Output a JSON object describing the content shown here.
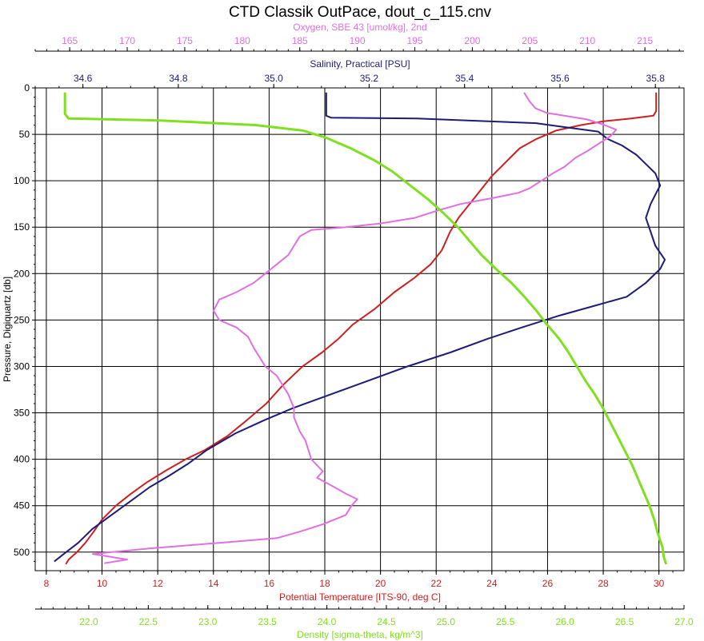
{
  "chart_data": {
    "type": "line",
    "title": "CTD Classik OutPace, dout_c_115.cnv",
    "y_axis": {
      "label": "Pressure, Digiquartz [db]",
      "range": [
        0,
        520
      ],
      "reversed": true,
      "ticks": [
        0,
        50,
        100,
        150,
        200,
        250,
        300,
        350,
        400,
        450,
        500
      ],
      "tick_labels": [
        "0",
        "50",
        "100",
        "150",
        "200",
        "250",
        "300",
        "350",
        "400",
        "450",
        "500"
      ]
    },
    "axes": {
      "oxygen": {
        "label": "Oxygen, SBE 43 [umol/kg], 2nd",
        "range": [
          162.0,
          218.4
        ],
        "ticks": [
          165,
          170,
          175,
          180,
          185,
          190,
          195,
          200,
          205,
          210,
          215
        ],
        "tick_labels": [
          "165",
          "170",
          "175",
          "180",
          "185",
          "190",
          "195",
          "200",
          "205",
          "210",
          "215"
        ],
        "color": "#e070e0",
        "position": "top"
      },
      "salinity": {
        "label": "Salinity, Practical [PSU]",
        "range": [
          34.5,
          35.86
        ],
        "ticks": [
          34.6,
          34.8,
          35.0,
          35.2,
          35.4,
          35.6,
          35.8
        ],
        "tick_labels": [
          "34.6",
          "34.8",
          "35.0",
          "35.2",
          "35.4",
          "35.6",
          "35.8"
        ],
        "color": "#1c1c78",
        "position": "top"
      },
      "temperature": {
        "label": "Potential Temperature [ITS-90, deg C]",
        "range": [
          7.6,
          30.9
        ],
        "ticks": [
          8,
          10,
          12,
          14,
          16,
          18,
          20,
          22,
          24,
          26,
          28,
          30
        ],
        "tick_labels": [
          "8",
          "10",
          "12",
          "14",
          "16",
          "18",
          "20",
          "22",
          "24",
          "26",
          "28",
          "30"
        ],
        "color": "#cc2020",
        "position": "bottom"
      },
      "density": {
        "label": "Density [sigma-theta, kg/m^3]",
        "range": [
          21.55,
          27.0
        ],
        "ticks": [
          22.0,
          22.5,
          23.0,
          23.5,
          24.0,
          24.5,
          25.0,
          25.5,
          26.0,
          26.5,
          27.0
        ],
        "tick_labels": [
          "22.0",
          "22.5",
          "23.0",
          "23.5",
          "24.0",
          "24.5",
          "25.0",
          "25.5",
          "26.0",
          "26.5",
          "27.0"
        ],
        "color": "#80e020",
        "position": "bottom"
      }
    },
    "grid": true,
    "series": [
      {
        "axis": "temperature",
        "color": "#cc2020",
        "points": [
          [
            29.9,
            5
          ],
          [
            29.9,
            25
          ],
          [
            29.8,
            30
          ],
          [
            29.0,
            33
          ],
          [
            28.0,
            36
          ],
          [
            27.2,
            40
          ],
          [
            26.3,
            46
          ],
          [
            25.6,
            55
          ],
          [
            25.0,
            65
          ],
          [
            24.5,
            80
          ],
          [
            24.0,
            95
          ],
          [
            23.6,
            110
          ],
          [
            23.2,
            125
          ],
          [
            22.8,
            140
          ],
          [
            22.5,
            155
          ],
          [
            22.2,
            175
          ],
          [
            21.8,
            190
          ],
          [
            21.2,
            205
          ],
          [
            20.5,
            220
          ],
          [
            19.8,
            238
          ],
          [
            19.0,
            255
          ],
          [
            18.5,
            270
          ],
          [
            17.9,
            285
          ],
          [
            17.2,
            300
          ],
          [
            16.5,
            320
          ],
          [
            15.9,
            340
          ],
          [
            15.2,
            358
          ],
          [
            14.5,
            375
          ],
          [
            13.7,
            390
          ],
          [
            13.0,
            400
          ],
          [
            12.3,
            412
          ],
          [
            11.6,
            425
          ],
          [
            11.0,
            438
          ],
          [
            10.5,
            450
          ],
          [
            10.0,
            465
          ],
          [
            9.7,
            478
          ],
          [
            9.4,
            490
          ],
          [
            9.1,
            500
          ],
          [
            8.8,
            508
          ],
          [
            8.7,
            513
          ]
        ]
      },
      {
        "axis": "salinity",
        "color": "#1c1c78",
        "points": [
          [
            35.11,
            5
          ],
          [
            35.11,
            30
          ],
          [
            35.12,
            32
          ],
          [
            35.3,
            33
          ],
          [
            35.55,
            38
          ],
          [
            35.62,
            43
          ],
          [
            35.68,
            47
          ],
          [
            35.7,
            55
          ],
          [
            35.73,
            62
          ],
          [
            35.76,
            72
          ],
          [
            35.78,
            82
          ],
          [
            35.8,
            92
          ],
          [
            35.81,
            105
          ],
          [
            35.8,
            115
          ],
          [
            35.79,
            125
          ],
          [
            35.78,
            140
          ],
          [
            35.79,
            155
          ],
          [
            35.8,
            170
          ],
          [
            35.82,
            185
          ],
          [
            35.81,
            195
          ],
          [
            35.78,
            210
          ],
          [
            35.74,
            225
          ],
          [
            35.67,
            235
          ],
          [
            35.6,
            245
          ],
          [
            35.52,
            258
          ],
          [
            35.45,
            270
          ],
          [
            35.37,
            285
          ],
          [
            35.28,
            300
          ],
          [
            35.2,
            315
          ],
          [
            35.12,
            330
          ],
          [
            35.04,
            345
          ],
          [
            34.98,
            358
          ],
          [
            34.92,
            372
          ],
          [
            34.86,
            390
          ],
          [
            34.82,
            405
          ],
          [
            34.78,
            418
          ],
          [
            34.74,
            430
          ],
          [
            34.7,
            445
          ],
          [
            34.66,
            460
          ],
          [
            34.62,
            475
          ],
          [
            34.59,
            490
          ],
          [
            34.56,
            502
          ],
          [
            34.54,
            510
          ]
        ]
      },
      {
        "axis": "oxygen",
        "color": "#e070e0",
        "points": [
          [
            204.5,
            5
          ],
          [
            205,
            15
          ],
          [
            205.5,
            22
          ],
          [
            206.5,
            27
          ],
          [
            208,
            30
          ],
          [
            210,
            34
          ],
          [
            211.5,
            40
          ],
          [
            212.5,
            45
          ],
          [
            212,
            52
          ],
          [
            211,
            60
          ],
          [
            210,
            68
          ],
          [
            209,
            75
          ],
          [
            208,
            85
          ],
          [
            207,
            92
          ],
          [
            206,
            100
          ],
          [
            205,
            108
          ],
          [
            204,
            113
          ],
          [
            202,
            118
          ],
          [
            199,
            125
          ],
          [
            197,
            132
          ],
          [
            195,
            140
          ],
          [
            192,
            146
          ],
          [
            189,
            150
          ],
          [
            186,
            153
          ],
          [
            185,
            160
          ],
          [
            184.5,
            170
          ],
          [
            184,
            180
          ],
          [
            183,
            190
          ],
          [
            182,
            200
          ],
          [
            181,
            210
          ],
          [
            179.5,
            220
          ],
          [
            178,
            228
          ],
          [
            177.5,
            240
          ],
          [
            178,
            250
          ],
          [
            179.5,
            258
          ],
          [
            180.5,
            268
          ],
          [
            181,
            280
          ],
          [
            181.5,
            290
          ],
          [
            182,
            300
          ],
          [
            183,
            310
          ],
          [
            183.5,
            320
          ],
          [
            184,
            330
          ],
          [
            184.5,
            345
          ],
          [
            184.5,
            355
          ],
          [
            185,
            370
          ],
          [
            185.5,
            380
          ],
          [
            186,
            400
          ],
          [
            187,
            413
          ],
          [
            186.5,
            420
          ],
          [
            188,
            430
          ],
          [
            189,
            437
          ],
          [
            190,
            443
          ],
          [
            189.5,
            450
          ],
          [
            189,
            460
          ],
          [
            187,
            470
          ],
          [
            185,
            478
          ],
          [
            183,
            485
          ],
          [
            178,
            490
          ],
          [
            172,
            496
          ],
          [
            167,
            502
          ],
          [
            170,
            508
          ],
          [
            168,
            512
          ]
        ]
      },
      {
        "axis": "density",
        "color": "#80e020",
        "points": [
          [
            21.8,
            5
          ],
          [
            21.8,
            28
          ],
          [
            21.83,
            33
          ],
          [
            22.6,
            35
          ],
          [
            23.4,
            40
          ],
          [
            23.8,
            46
          ],
          [
            24.0,
            54
          ],
          [
            24.2,
            65
          ],
          [
            24.4,
            78
          ],
          [
            24.55,
            90
          ],
          [
            24.7,
            105
          ],
          [
            24.85,
            120
          ],
          [
            24.98,
            135
          ],
          [
            25.1,
            150
          ],
          [
            25.2,
            165
          ],
          [
            25.3,
            180
          ],
          [
            25.42,
            195
          ],
          [
            25.55,
            210
          ],
          [
            25.66,
            225
          ],
          [
            25.76,
            240
          ],
          [
            25.85,
            255
          ],
          [
            25.95,
            270
          ],
          [
            26.03,
            285
          ],
          [
            26.1,
            300
          ],
          [
            26.17,
            315
          ],
          [
            26.25,
            330
          ],
          [
            26.32,
            345
          ],
          [
            26.38,
            360
          ],
          [
            26.44,
            375
          ],
          [
            26.5,
            390
          ],
          [
            26.56,
            405
          ],
          [
            26.61,
            420
          ],
          [
            26.66,
            435
          ],
          [
            26.71,
            450
          ],
          [
            26.75,
            465
          ],
          [
            26.78,
            480
          ],
          [
            26.82,
            495
          ],
          [
            26.83,
            505
          ],
          [
            26.85,
            513
          ]
        ]
      }
    ]
  }
}
